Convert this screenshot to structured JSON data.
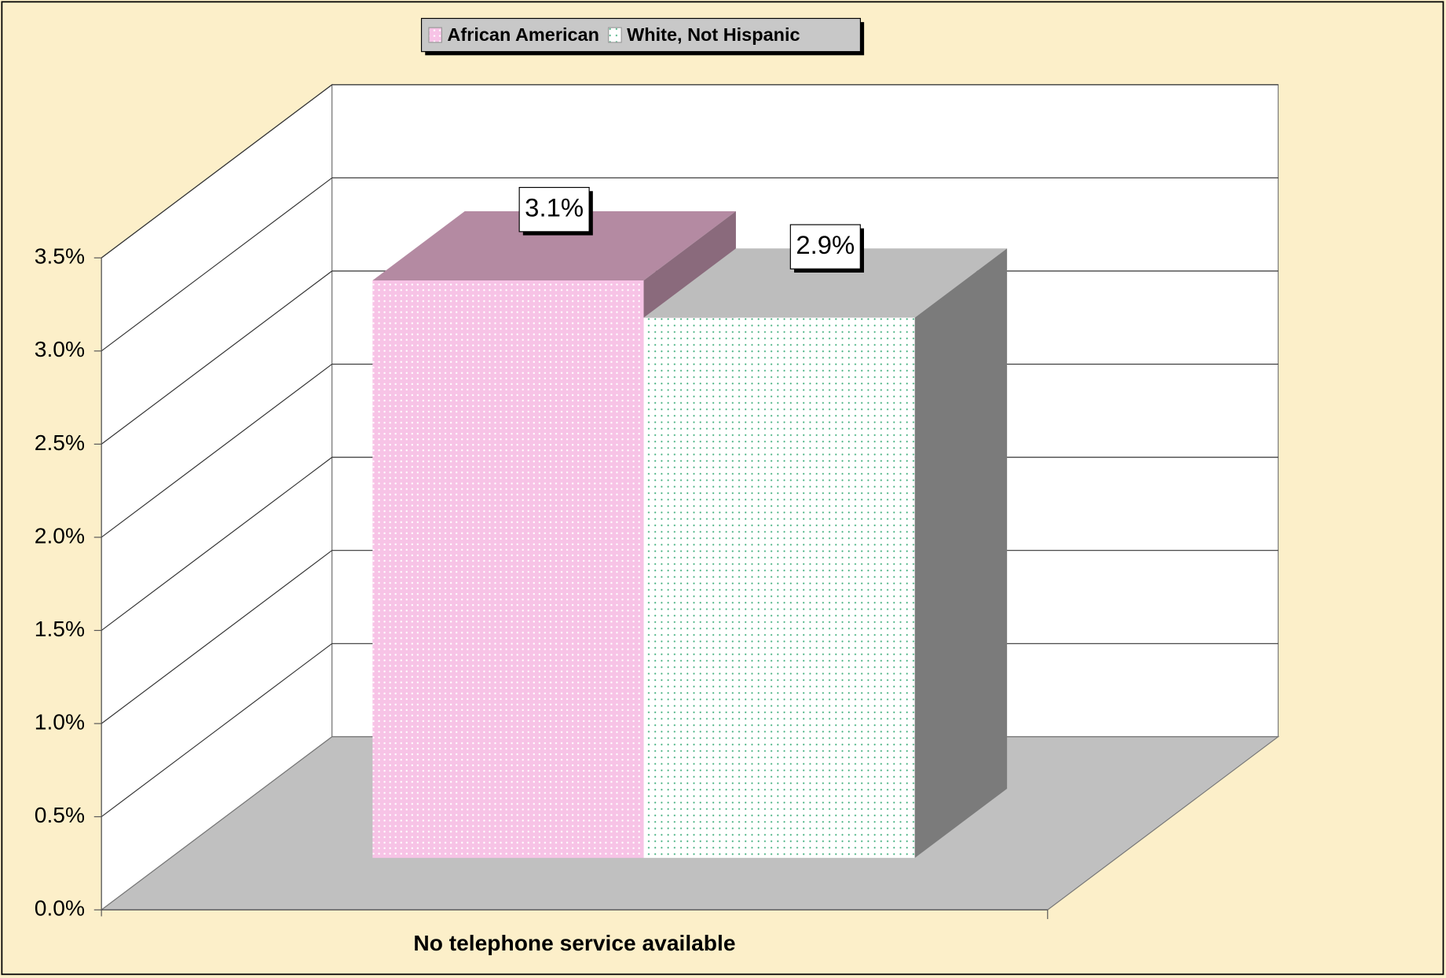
{
  "chart_data": {
    "type": "bar3d",
    "categories": [
      "No telephone service available"
    ],
    "series": [
      {
        "name": "African American",
        "color": "#f7c3e6",
        "values": [
          3.1
        ],
        "value_labels": [
          "3.1%"
        ]
      },
      {
        "name": "White, Not Hispanic",
        "color": "#ffffff",
        "values": [
          2.9
        ],
        "value_labels": [
          "2.9%"
        ]
      }
    ],
    "ylim": [
      0,
      3.5
    ],
    "yticks": [
      {
        "value": 0,
        "label": "0.0%"
      },
      {
        "value": 0.5,
        "label": "0.5%"
      },
      {
        "value": 1,
        "label": "1.0%"
      },
      {
        "value": 1.5,
        "label": "1.5%"
      },
      {
        "value": 2,
        "label": "2.0%"
      },
      {
        "value": 2.5,
        "label": "2.5%"
      },
      {
        "value": 3,
        "label": "3.0%"
      },
      {
        "value": 3.5,
        "label": "3.5%"
      }
    ],
    "grid": true,
    "legend": "top"
  }
}
